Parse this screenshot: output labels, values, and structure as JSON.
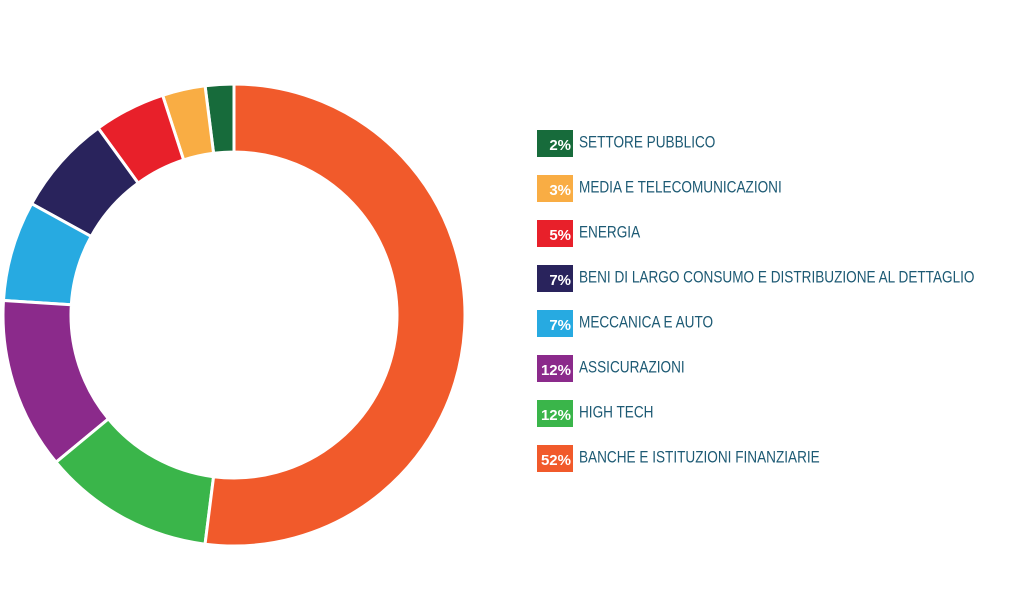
{
  "chart_data": {
    "type": "donut",
    "categories": [
      "SETTORE PUBBLICO",
      "MEDIA E TELECOMUNICAZIONI",
      "ENERGIA",
      "BENI DI LARGO CONSUMO E DISTRIBUZIONE AL DETTAGLIO",
      "MECCANICA E AUTO",
      "ASSICURAZIONI",
      "HIGH TECH",
      "BANCHE E ISTITUZIONI FINANZIARIE"
    ],
    "values": [
      2,
      3,
      5,
      7,
      7,
      12,
      12,
      52
    ],
    "value_labels": [
      "2%",
      "3%",
      "5%",
      "7%",
      "7%",
      "12%",
      "12%",
      "52%"
    ],
    "colors": [
      "#176b3b",
      "#f9ad44",
      "#e8202a",
      "#29235c",
      "#27aae1",
      "#8b2a8b",
      "#3ab54a",
      "#f15a2b"
    ],
    "legend": "right"
  }
}
